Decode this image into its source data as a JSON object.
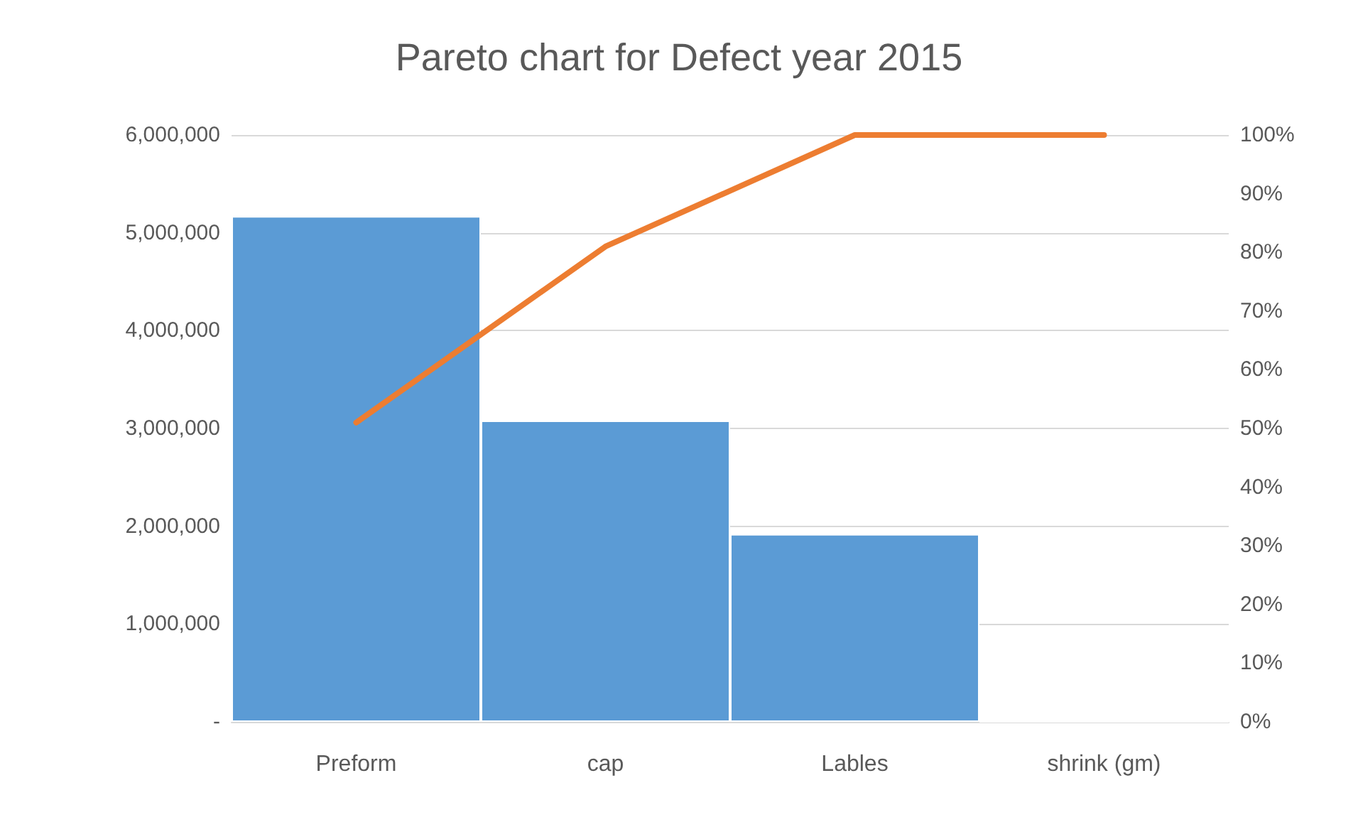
{
  "chart_data": {
    "type": "bar",
    "title": "Pareto chart for Defect year 2015",
    "categories": [
      "Preform",
      "cap",
      "Lables",
      "shrink (gm)"
    ],
    "series": [
      {
        "color": "#5b9bd5",
        "values": [
          5170000,
          3080000,
          1920000,
          0
        ]
      },
      {
        "type": "line",
        "color": "#ed7d31",
        "axis": "y2",
        "values": [
          51,
          81,
          100,
          100
        ]
      }
    ],
    "ylim": [
      0,
      6000000
    ],
    "yticks": [
      {
        "value": 0,
        "label": "-"
      },
      {
        "value": 1000000,
        "label": "1,000,000"
      },
      {
        "value": 2000000,
        "label": "2,000,000"
      },
      {
        "value": 3000000,
        "label": "3,000,000"
      },
      {
        "value": 4000000,
        "label": "4,000,000"
      },
      {
        "value": 5000000,
        "label": "5,000,000"
      },
      {
        "value": 6000000,
        "label": "6,000,000"
      }
    ],
    "y2lim": [
      0,
      100
    ],
    "y2ticks": [
      {
        "value": 0,
        "label": "0%"
      },
      {
        "value": 10,
        "label": "10%"
      },
      {
        "value": 20,
        "label": "20%"
      },
      {
        "value": 30,
        "label": "30%"
      },
      {
        "value": 40,
        "label": "40%"
      },
      {
        "value": 50,
        "label": "50%"
      },
      {
        "value": 60,
        "label": "60%"
      },
      {
        "value": 70,
        "label": "70%"
      },
      {
        "value": 80,
        "label": "80%"
      },
      {
        "value": 90,
        "label": "90%"
      },
      {
        "value": 100,
        "label": "100%"
      }
    ],
    "grid": "y",
    "marker": "none"
  }
}
